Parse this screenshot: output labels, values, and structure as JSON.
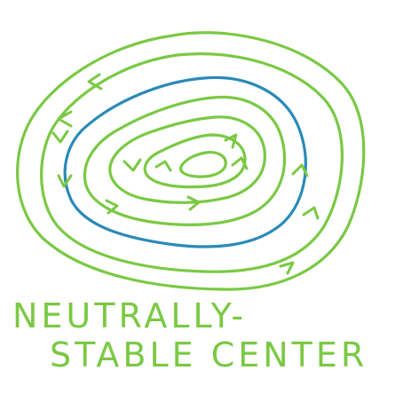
{
  "diagram": {
    "caption": {
      "line1": "NEUTRALLY-",
      "line2": "STABLE CENTER"
    },
    "colors": {
      "orbit": "#7ac943",
      "highlighted_orbit": "#2a8ab8",
      "caption": "#7ac943",
      "background": "#ffffff"
    },
    "orbits": [
      {
        "name": "outer-orbit",
        "color": "orbit"
      },
      {
        "name": "second-orbit",
        "color": "orbit"
      },
      {
        "name": "highlighted-orbit",
        "color": "highlighted_orbit"
      },
      {
        "name": "fourth-orbit",
        "color": "orbit"
      },
      {
        "name": "fifth-orbit",
        "color": "orbit"
      },
      {
        "name": "sixth-orbit",
        "color": "orbit"
      },
      {
        "name": "innermost-orbit",
        "color": "orbit"
      }
    ],
    "flow_direction": "counterclockwise"
  }
}
